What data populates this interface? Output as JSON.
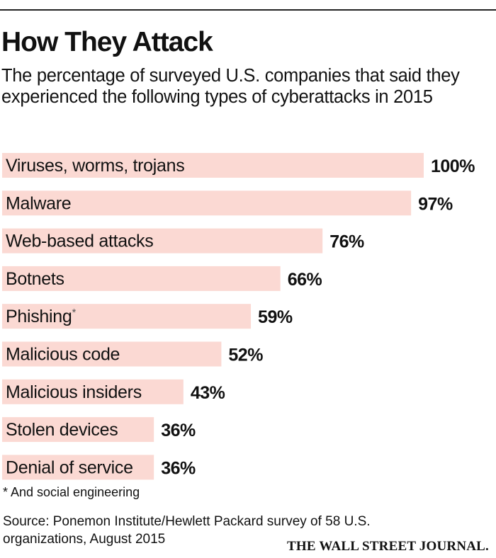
{
  "chart_data": {
    "type": "bar",
    "orientation": "horizontal",
    "title": "How They Attack",
    "subtitle": "The percentage of surveyed U.S. companies that said they experienced the following types of cyberattacks in 2015",
    "categories": [
      "Viruses, worms, trojans",
      "Malware",
      "Web-based attacks",
      "Botnets",
      "Phishing",
      "Malicious code",
      "Malicious insiders",
      "Stolen devices",
      "Denial of service"
    ],
    "footnote_markers": [
      "",
      "",
      "",
      "",
      "*",
      "",
      "",
      "",
      ""
    ],
    "values": [
      100,
      97,
      76,
      66,
      59,
      52,
      43,
      36,
      36
    ],
    "value_labels": [
      "100%",
      "97%",
      "76%",
      "66%",
      "59%",
      "52%",
      "43%",
      "36%",
      "36%"
    ],
    "xlim": [
      0,
      100
    ],
    "grid": false,
    "bar_color": "#fbd9d3",
    "footnote": "* And social engineering",
    "source": "Source: Ponemon Institute/Hewlett Packard survey of 58 U.S. organizations, August 2015",
    "publisher": "THE WALL STREET JOURNAL."
  }
}
